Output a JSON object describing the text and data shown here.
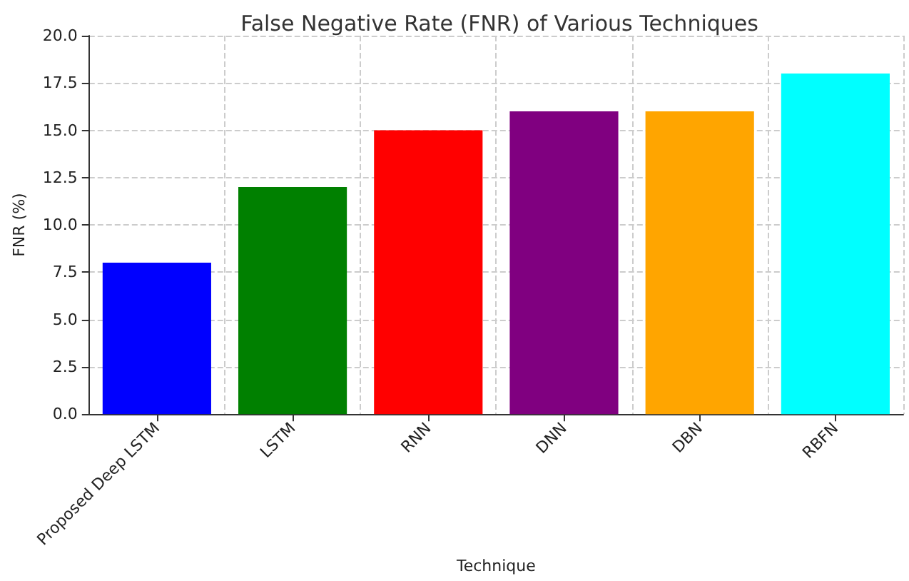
{
  "chart_data": {
    "type": "bar",
    "title": "False Negative Rate (FNR) of Various Techniques",
    "xlabel": "Technique",
    "ylabel": "FNR (%)",
    "categories": [
      "Proposed Deep LSTM",
      "LSTM",
      "RNN",
      "DNN",
      "DBN",
      "RBFN"
    ],
    "values": [
      8,
      12,
      15,
      16,
      16,
      18
    ],
    "colors": [
      "#0000ff",
      "#008000",
      "#ff0000",
      "#800080",
      "#ffa500",
      "#00ffff"
    ],
    "ylim": [
      0,
      20
    ],
    "yticks": [
      {
        "value": 0,
        "label": "0.0"
      },
      {
        "value": 2.5,
        "label": "2.5"
      },
      {
        "value": 5,
        "label": "5.0"
      },
      {
        "value": 7.5,
        "label": "7.5"
      },
      {
        "value": 10,
        "label": "10.0"
      },
      {
        "value": 12.5,
        "label": "12.5"
      },
      {
        "value": 15,
        "label": "15.0"
      },
      {
        "value": 17.5,
        "label": "17.5"
      },
      {
        "value": 20,
        "label": "20.0"
      }
    ],
    "grid": true
  }
}
